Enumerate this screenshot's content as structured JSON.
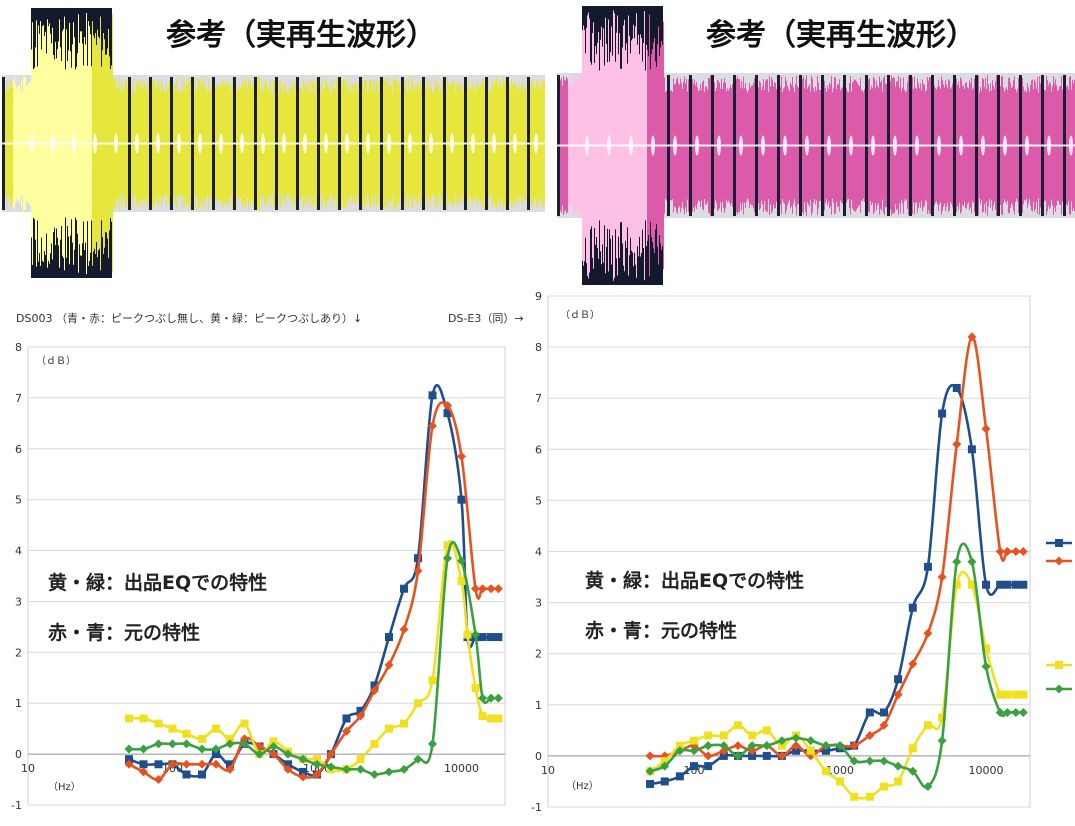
{
  "waveforms": {
    "left": {
      "title": "参考（実再生波形）",
      "color": "#e6e63c",
      "bright": "#ffffa0"
    },
    "right": {
      "title": "参考（実再生波形）",
      "color": "#dc5aaa",
      "bright": "#ffc0e6"
    }
  },
  "captions": {
    "left": "DS003 （青・赤：ピークつぶし無し、黄・緑：ピークつぶしあり）↓",
    "right": "DS-E3（同）→"
  },
  "notes": {
    "line1": "黄・緑：出品EQでの特性",
    "line2": "赤・青：元の特性"
  },
  "chart_data": [
    {
      "type": "line",
      "name": "DS003",
      "xlabel": "（Hz）",
      "ylabel": "（ｄＢ）",
      "xscale": "log",
      "xlim": [
        10,
        20000
      ],
      "ylim": [
        -1,
        8
      ],
      "xticks": [
        "10",
        "100",
        "1000",
        "10000"
      ],
      "yticks": [
        "-1",
        "0",
        "1",
        "2",
        "3",
        "4",
        "5",
        "6",
        "7",
        "8"
      ],
      "series": [
        {
          "color": "#1f4e8c",
          "marker": "square",
          "x": [
            50,
            63,
            80,
            100,
            125,
            160,
            200,
            250,
            315,
            400,
            500,
            630,
            800,
            1000,
            1250,
            1600,
            2000,
            2500,
            3150,
            4000,
            5000,
            6300,
            8000,
            10000,
            11000,
            12500,
            14000,
            16000,
            18000
          ],
          "y": [
            -0.1,
            -0.2,
            -0.2,
            -0.2,
            -0.4,
            -0.4,
            0,
            -0.2,
            0.2,
            0.15,
            0,
            -0.2,
            -0.35,
            -0.4,
            0,
            0.7,
            0.85,
            1.35,
            2.3,
            3.25,
            3.85,
            7.05,
            6.7,
            5.0,
            2.3,
            2.3,
            2.3,
            2.3,
            2.3
          ]
        },
        {
          "color": "#e8521e",
          "marker": "diamond",
          "x": [
            50,
            63,
            80,
            100,
            125,
            160,
            200,
            250,
            315,
            400,
            500,
            630,
            800,
            1000,
            1250,
            1600,
            2000,
            2500,
            3150,
            4000,
            5000,
            6300,
            8000,
            10000,
            12500,
            14000,
            16000,
            18000
          ],
          "y": [
            -0.2,
            -0.35,
            -0.5,
            -0.2,
            -0.2,
            -0.2,
            -0.2,
            -0.3,
            0.3,
            0.15,
            0,
            -0.3,
            -0.45,
            -0.4,
            0,
            0.45,
            0.75,
            1.25,
            1.75,
            2.45,
            3.6,
            6.45,
            6.85,
            5.85,
            3.25,
            3.25,
            3.25,
            3.25
          ]
        },
        {
          "color": "#f0e020",
          "marker": "square",
          "x": [
            50,
            63,
            80,
            100,
            125,
            160,
            200,
            250,
            315,
            400,
            500,
            630,
            800,
            1000,
            1250,
            1600,
            2000,
            2500,
            3150,
            4000,
            5000,
            6300,
            8000,
            10000,
            11000,
            12500,
            14000,
            16000,
            18000
          ],
          "y": [
            0.7,
            0.7,
            0.6,
            0.5,
            0.4,
            0.3,
            0.5,
            0.3,
            0.6,
            0,
            0.25,
            0.05,
            -0.1,
            -0.1,
            -0.3,
            -0.3,
            -0.1,
            0.2,
            0.5,
            0.6,
            1.0,
            1.45,
            4.1,
            3.4,
            2.35,
            1.3,
            0.75,
            0.7,
            0.7
          ]
        },
        {
          "color": "#3aa040",
          "marker": "diamond",
          "x": [
            50,
            63,
            80,
            100,
            125,
            160,
            200,
            250,
            315,
            400,
            500,
            630,
            800,
            1000,
            1250,
            1600,
            2000,
            2500,
            3150,
            4000,
            5000,
            6300,
            8000,
            10000,
            12500,
            14000,
            16000,
            18000
          ],
          "y": [
            0.1,
            0.1,
            0.2,
            0.2,
            0.2,
            0.1,
            0.1,
            0.2,
            0.2,
            0,
            0.15,
            0,
            -0.1,
            -0.2,
            -0.25,
            -0.3,
            -0.3,
            -0.4,
            -0.35,
            -0.3,
            -0.1,
            0.2,
            3.85,
            3.8,
            2.35,
            1.1,
            1.1,
            1.1
          ]
        }
      ]
    },
    {
      "type": "line",
      "name": "DS-E3",
      "xlabel": "（Hz）",
      "ylabel": "（ｄＢ）",
      "xscale": "log",
      "xlim": [
        10,
        20000
      ],
      "ylim": [
        -1,
        9
      ],
      "xticks": [
        "10",
        "100",
        "1000",
        "10000"
      ],
      "yticks": [
        "-1",
        "0",
        "1",
        "2",
        "3",
        "4",
        "5",
        "6",
        "7",
        "8",
        "9"
      ],
      "series": [
        {
          "color": "#1f4e8c",
          "marker": "square",
          "x": [
            50,
            63,
            80,
            100,
            125,
            160,
            200,
            250,
            315,
            400,
            500,
            630,
            800,
            1000,
            1250,
            1600,
            2000,
            2500,
            3150,
            4000,
            5000,
            6300,
            8000,
            10000,
            12500,
            14000,
            16000,
            18000
          ],
          "y": [
            -0.55,
            -0.5,
            -0.4,
            -0.2,
            -0.2,
            0,
            0,
            0,
            0,
            0,
            0.1,
            0.1,
            0.1,
            0.15,
            0.2,
            0.85,
            0.85,
            1.5,
            2.9,
            3.7,
            6.7,
            7.2,
            6.0,
            3.35,
            3.35,
            3.35,
            3.35,
            3.35
          ]
        },
        {
          "color": "#e8521e",
          "marker": "diamond",
          "x": [
            50,
            63,
            80,
            100,
            125,
            160,
            200,
            250,
            315,
            400,
            500,
            630,
            800,
            1000,
            1250,
            1600,
            2000,
            2500,
            3150,
            4000,
            5000,
            6300,
            8000,
            10000,
            12500,
            14000,
            16000,
            18000
          ],
          "y": [
            0,
            0,
            0.1,
            0.2,
            0,
            0.1,
            0.2,
            0.1,
            0.2,
            0,
            0.2,
            0,
            0.2,
            0.2,
            0.2,
            0.4,
            0.6,
            1.2,
            1.8,
            2.4,
            3.5,
            6.1,
            8.2,
            6.4,
            4.0,
            4.0,
            4.0,
            4.0
          ]
        },
        {
          "color": "#f0e020",
          "marker": "square",
          "x": [
            50,
            63,
            80,
            100,
            125,
            160,
            200,
            250,
            315,
            400,
            500,
            630,
            800,
            1000,
            1250,
            1600,
            2000,
            2500,
            3150,
            4000,
            5000,
            6300,
            8000,
            10000,
            12500,
            14000,
            16000,
            18000
          ],
          "y": [
            -0.3,
            -0.1,
            0.2,
            0.3,
            0.4,
            0.4,
            0.6,
            0.4,
            0.5,
            0.2,
            0.4,
            0.1,
            -0.3,
            -0.5,
            -0.8,
            -0.8,
            -0.6,
            -0.5,
            0.15,
            0.6,
            0.75,
            3.35,
            3.35,
            2.1,
            1.2,
            1.2,
            1.2,
            1.2
          ]
        },
        {
          "color": "#3aa040",
          "marker": "diamond",
          "x": [
            50,
            63,
            80,
            100,
            125,
            160,
            200,
            250,
            315,
            400,
            500,
            630,
            800,
            1000,
            1250,
            1600,
            2000,
            2500,
            3150,
            4000,
            5000,
            6300,
            8000,
            10000,
            12500,
            14000,
            16000,
            18000
          ],
          "y": [
            -0.3,
            -0.2,
            0.1,
            0.1,
            0.2,
            0.2,
            0,
            0.2,
            0.2,
            0.3,
            0.35,
            0.3,
            0.2,
            0.2,
            -0.1,
            -0.1,
            -0.1,
            -0.2,
            -0.3,
            -0.6,
            0.3,
            3.8,
            3.8,
            1.75,
            0.85,
            0.85,
            0.85,
            0.85
          ]
        }
      ]
    }
  ]
}
